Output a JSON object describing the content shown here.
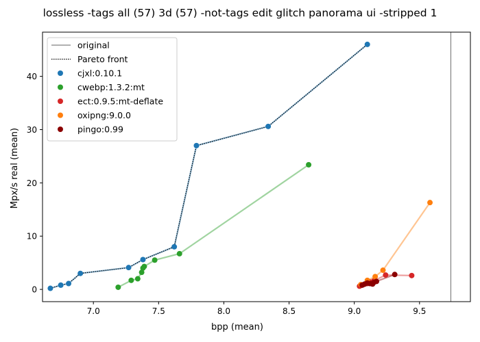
{
  "chart_data": {
    "type": "scatter",
    "title": "lossless -tags all (57) 3d (57) -not-tags edit glitch panorama ui -stripped 1",
    "xlabel": "bpp (mean)",
    "ylabel": "Mpx/s real (mean)",
    "xlim": [
      6.61,
      9.89
    ],
    "ylim": [
      -2.3,
      48.3
    ],
    "xticks": [
      7.0,
      7.5,
      8.0,
      8.5,
      9.0,
      9.5
    ],
    "xtick_labels": [
      "7.0",
      "7.5",
      "8.0",
      "8.5",
      "9.0",
      "9.5"
    ],
    "yticks": [
      0,
      10,
      20,
      30,
      40
    ],
    "ytick_labels": [
      "0",
      "10",
      "20",
      "30",
      "40"
    ],
    "grid": false,
    "legend_position": "top-left",
    "reference_line": {
      "name": "original",
      "x": 9.74,
      "color": "#808080"
    },
    "pareto_front": {
      "name": "Pareto front",
      "points": [
        [
          6.67,
          0.2
        ],
        [
          6.75,
          0.8
        ],
        [
          6.81,
          1.1
        ],
        [
          6.9,
          3.0
        ],
        [
          7.27,
          4.1
        ],
        [
          7.38,
          5.6
        ],
        [
          7.62,
          8.0
        ],
        [
          7.79,
          27.0
        ],
        [
          8.34,
          30.6
        ],
        [
          9.1,
          46.0
        ]
      ]
    },
    "series": [
      {
        "name": "cjxl:0.10.1",
        "color": "#1f77b4",
        "connected": true,
        "points": [
          [
            6.67,
            0.2
          ],
          [
            6.75,
            0.8
          ],
          [
            6.81,
            1.1
          ],
          [
            6.9,
            3.0
          ],
          [
            7.27,
            4.1
          ],
          [
            7.38,
            5.6
          ],
          [
            7.62,
            8.0
          ],
          [
            7.79,
            27.0
          ],
          [
            8.34,
            30.6
          ],
          [
            9.1,
            46.0
          ]
        ]
      },
      {
        "name": "cwebp:1.3.2:mt",
        "color": "#2ca02c",
        "connected": true,
        "points": [
          [
            7.19,
            0.4
          ],
          [
            7.29,
            1.7
          ],
          [
            7.34,
            2.0
          ],
          [
            7.37,
            3.2
          ],
          [
            7.38,
            4.0
          ],
          [
            7.39,
            4.3
          ],
          [
            7.47,
            5.5
          ],
          [
            7.66,
            6.7
          ],
          [
            8.65,
            23.4
          ]
        ]
      },
      {
        "name": "ect:0.9.5:mt-deflate",
        "color": "#d62728",
        "connected": true,
        "points": [
          [
            9.04,
            0.6
          ],
          [
            9.07,
            0.9
          ],
          [
            9.1,
            1.1
          ],
          [
            9.12,
            1.4
          ],
          [
            9.15,
            1.6
          ],
          [
            9.24,
            2.7
          ],
          [
            9.44,
            2.6
          ]
        ]
      },
      {
        "name": "oxipng:9.0.0",
        "color": "#ff7f0e",
        "connected": true,
        "points": [
          [
            9.05,
            0.9
          ],
          [
            9.1,
            1.7
          ],
          [
            9.16,
            2.4
          ],
          [
            9.22,
            3.6
          ],
          [
            9.58,
            16.3
          ]
        ]
      },
      {
        "name": "pingo:0.99",
        "color": "#8b0000",
        "connected": true,
        "points": [
          [
            9.06,
            0.8
          ],
          [
            9.08,
            1.0
          ],
          [
            9.1,
            1.2
          ],
          [
            9.12,
            1.1
          ],
          [
            9.14,
            1.0
          ],
          [
            9.15,
            1.3
          ],
          [
            9.17,
            1.5
          ],
          [
            9.31,
            2.8
          ]
        ]
      }
    ]
  }
}
